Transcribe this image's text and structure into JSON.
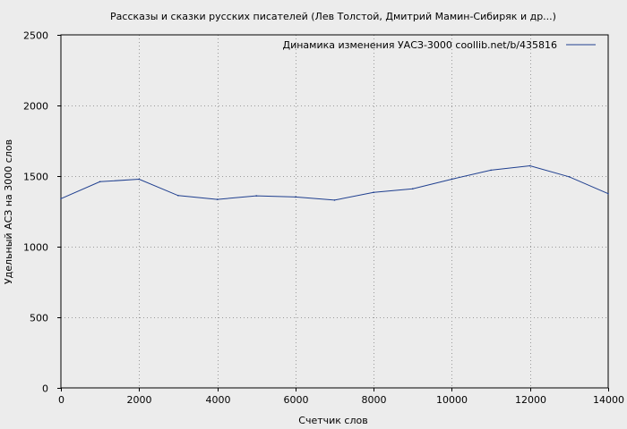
{
  "chart_data": {
    "type": "line",
    "title": "Рассказы и сказки русских писателей (Лев Толстой, Дмитрий Мамин-Сибиряк и др...)",
    "xlabel": "Счетчик слов",
    "ylabel": "Удельный АСЗ на 3000 слов",
    "xlim": [
      0,
      14000
    ],
    "ylim": [
      0,
      2500
    ],
    "xticks": [
      0,
      2000,
      4000,
      6000,
      8000,
      10000,
      12000,
      14000
    ],
    "yticks": [
      0,
      500,
      1000,
      1500,
      2000,
      2500
    ],
    "xtick_labels": [
      "0",
      "2000",
      "4000",
      "6000",
      "8000",
      "10000",
      "12000",
      "14000"
    ],
    "ytick_labels": [
      "0",
      "500",
      "1000",
      "1500",
      "2000",
      "2500"
    ],
    "grid": true,
    "legend_position": "top-right",
    "series": [
      {
        "name": "Динамика изменения УАСЗ-3000  coollib.net/b/435816",
        "color": "#1f3f8f",
        "x": [
          0,
          1000,
          2000,
          3000,
          4000,
          5000,
          6000,
          7000,
          8000,
          9000,
          10000,
          11000,
          12000,
          13000,
          14000
        ],
        "y": [
          1340,
          1460,
          1478,
          1362,
          1335,
          1360,
          1352,
          1330,
          1385,
          1410,
          1478,
          1542,
          1573,
          1495,
          1375
        ]
      }
    ]
  }
}
